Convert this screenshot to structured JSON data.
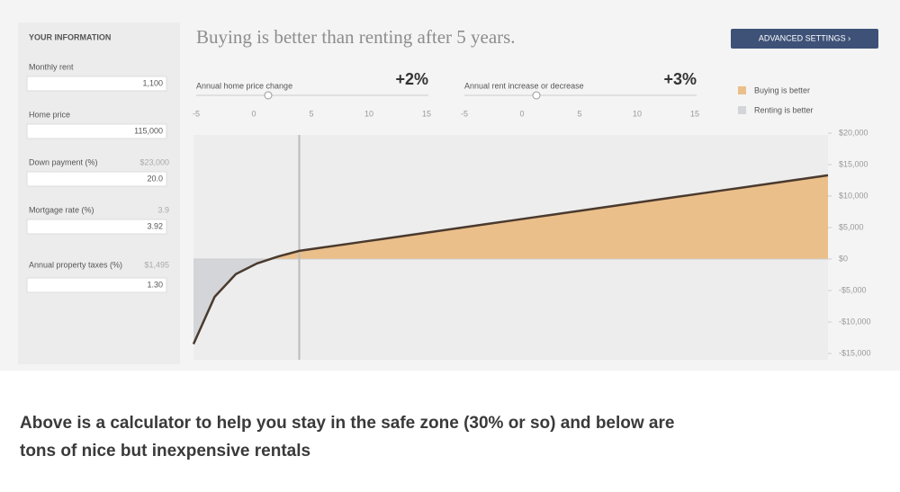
{
  "sidebar": {
    "heading": "YOUR INFORMATION",
    "fields": [
      {
        "label": "Monthly rent",
        "value": "1,100"
      },
      {
        "label": "Home price",
        "value": "115,000"
      },
      {
        "label": "Down payment (%)",
        "hint": "$23,000",
        "value": "20.0"
      },
      {
        "label": "Mortgage rate (%)",
        "hint": "3.9",
        "value": "3.92"
      },
      {
        "label": "Annual property taxes (%)",
        "hint": "$1,495",
        "value": "1.30"
      }
    ]
  },
  "header": {
    "title": "Buying is better than renting after 5 years.",
    "button": "ADVANCED SETTINGS ›"
  },
  "sliders": [
    {
      "label": "Annual home price change",
      "value": "+2%",
      "ticks": [
        "-5",
        "0",
        "5",
        "10",
        "15"
      ]
    },
    {
      "label": "Annual rent increase or decrease",
      "value": "+3%",
      "ticks": [
        "-5",
        "0",
        "5",
        "10",
        "15"
      ]
    }
  ],
  "legend": [
    "Buying is better",
    "Renting is better"
  ],
  "chart_data": {
    "type": "area",
    "values": [
      -13500,
      -6000,
      -2400,
      -700,
      400,
      1300,
      1780,
      2260,
      2740,
      3220,
      3700,
      4180,
      4660,
      5140,
      5620,
      6100,
      6580,
      7060,
      7540,
      8020,
      8500,
      8980,
      9460,
      9940,
      10420,
      10900,
      11380,
      11860,
      12340,
      12820,
      13300
    ],
    "colors": {
      "line": "#4a3a2e",
      "positive": "#ebbf8a",
      "negative": "#d3d5d8"
    },
    "ylim": [
      -16000,
      20000
    ],
    "yticks": [
      {
        "value": 20000,
        "label": "$20,000"
      },
      {
        "value": 15000,
        "label": "$15,000"
      },
      {
        "value": 10000,
        "label": "$10,000"
      },
      {
        "value": 5000,
        "label": "$5,000"
      },
      {
        "value": 0,
        "label": "$0"
      },
      {
        "value": -5000,
        "label": "-$5,000"
      },
      {
        "value": -10000,
        "label": "-$10,000"
      },
      {
        "value": -15000,
        "label": "-$15,000"
      }
    ]
  },
  "caption": [
    "Above is a calculator to help you stay in the safe zone (30% or so) and below are",
    "tons of nice but inexpensive rentals"
  ]
}
